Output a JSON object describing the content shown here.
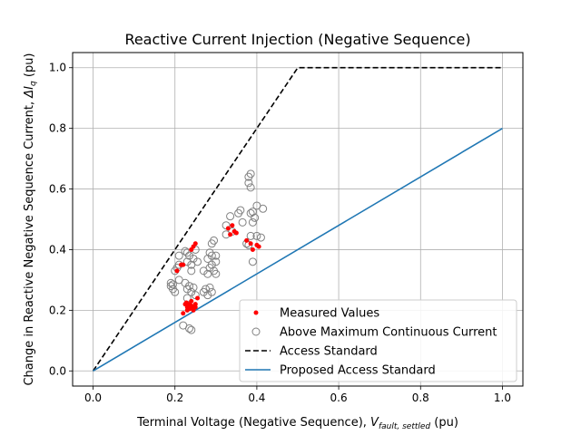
{
  "chart_data": {
    "type": "scatter",
    "title": "Reactive Current Injection (Negative Sequence)",
    "xlabel": "Terminal Voltage (Negative Sequence), ",
    "xlabel_var": "V",
    "xlabel_sub": "fault, settled",
    "xlabel_unit": " (pu)",
    "ylabel": "Change in Reactive Negative Sequence Current, ",
    "ylabel_var": "ΔI",
    "ylabel_sub": "q",
    "ylabel_unit": " (pu)",
    "xlim": [
      -0.05,
      1.05
    ],
    "ylim": [
      -0.05,
      1.05
    ],
    "xticks": [
      0.0,
      0.2,
      0.4,
      0.6,
      0.8,
      1.0
    ],
    "xtick_labels": [
      "0.0",
      "0.2",
      "0.4",
      "0.6",
      "0.8",
      "1.0"
    ],
    "yticks": [
      0.0,
      0.2,
      0.4,
      0.6,
      0.8,
      1.0
    ],
    "ytick_labels": [
      "0.0",
      "0.2",
      "0.4",
      "0.6",
      "0.8",
      "1.0"
    ],
    "grid": true,
    "legend_position": "lower-right",
    "series": [
      {
        "name": "Measured Values",
        "kind": "scatter",
        "marker": "filled-dot",
        "color": "#ff0000",
        "points": [
          [
            0.215,
            0.35
          ],
          [
            0.22,
            0.35
          ],
          [
            0.205,
            0.33
          ],
          [
            0.24,
            0.4
          ],
          [
            0.245,
            0.41
          ],
          [
            0.25,
            0.42
          ],
          [
            0.22,
            0.19
          ],
          [
            0.225,
            0.22
          ],
          [
            0.23,
            0.21
          ],
          [
            0.235,
            0.22
          ],
          [
            0.24,
            0.23
          ],
          [
            0.245,
            0.21
          ],
          [
            0.25,
            0.22
          ],
          [
            0.255,
            0.24
          ],
          [
            0.23,
            0.2
          ],
          [
            0.24,
            0.215
          ],
          [
            0.245,
            0.2
          ],
          [
            0.25,
            0.21
          ],
          [
            0.228,
            0.225
          ],
          [
            0.236,
            0.205
          ],
          [
            0.33,
            0.47
          ],
          [
            0.34,
            0.48
          ],
          [
            0.345,
            0.46
          ],
          [
            0.335,
            0.45
          ],
          [
            0.35,
            0.455
          ],
          [
            0.375,
            0.43
          ],
          [
            0.385,
            0.42
          ],
          [
            0.39,
            0.4
          ],
          [
            0.4,
            0.415
          ],
          [
            0.405,
            0.41
          ]
        ]
      },
      {
        "name": "Above Maximum Continuous Current",
        "kind": "scatter",
        "marker": "hollow-circle",
        "color": "#808080",
        "points": [
          [
            0.19,
            0.29
          ],
          [
            0.195,
            0.27
          ],
          [
            0.19,
            0.28
          ],
          [
            0.2,
            0.33
          ],
          [
            0.205,
            0.34
          ],
          [
            0.21,
            0.35
          ],
          [
            0.2,
            0.26
          ],
          [
            0.195,
            0.285
          ],
          [
            0.21,
            0.3
          ],
          [
            0.225,
            0.29
          ],
          [
            0.23,
            0.27
          ],
          [
            0.235,
            0.28
          ],
          [
            0.24,
            0.26
          ],
          [
            0.245,
            0.275
          ],
          [
            0.25,
            0.25
          ],
          [
            0.23,
            0.36
          ],
          [
            0.235,
            0.38
          ],
          [
            0.24,
            0.35
          ],
          [
            0.245,
            0.37
          ],
          [
            0.25,
            0.4
          ],
          [
            0.23,
            0.39
          ],
          [
            0.24,
            0.33
          ],
          [
            0.255,
            0.36
          ],
          [
            0.22,
            0.15
          ],
          [
            0.235,
            0.14
          ],
          [
            0.24,
            0.135
          ],
          [
            0.23,
            0.24
          ],
          [
            0.27,
            0.26
          ],
          [
            0.275,
            0.27
          ],
          [
            0.28,
            0.25
          ],
          [
            0.285,
            0.275
          ],
          [
            0.29,
            0.26
          ],
          [
            0.27,
            0.33
          ],
          [
            0.28,
            0.32
          ],
          [
            0.285,
            0.34
          ],
          [
            0.29,
            0.35
          ],
          [
            0.295,
            0.33
          ],
          [
            0.28,
            0.37
          ],
          [
            0.29,
            0.38
          ],
          [
            0.285,
            0.39
          ],
          [
            0.29,
            0.42
          ],
          [
            0.295,
            0.43
          ],
          [
            0.3,
            0.38
          ],
          [
            0.3,
            0.32
          ],
          [
            0.325,
            0.45
          ],
          [
            0.325,
            0.48
          ],
          [
            0.335,
            0.51
          ],
          [
            0.34,
            0.46
          ],
          [
            0.355,
            0.52
          ],
          [
            0.36,
            0.53
          ],
          [
            0.365,
            0.49
          ],
          [
            0.375,
            0.42
          ],
          [
            0.38,
            0.415
          ],
          [
            0.38,
            0.64
          ],
          [
            0.385,
            0.65
          ],
          [
            0.38,
            0.62
          ],
          [
            0.385,
            0.605
          ],
          [
            0.385,
            0.52
          ],
          [
            0.39,
            0.525
          ],
          [
            0.39,
            0.49
          ],
          [
            0.395,
            0.505
          ],
          [
            0.385,
            0.445
          ],
          [
            0.39,
            0.36
          ],
          [
            0.4,
            0.545
          ],
          [
            0.4,
            0.445
          ],
          [
            0.41,
            0.44
          ],
          [
            0.415,
            0.535
          ],
          [
            0.21,
            0.38
          ],
          [
            0.225,
            0.395
          ],
          [
            0.3,
            0.36
          ]
        ]
      },
      {
        "name": "Access Standard",
        "kind": "line",
        "style": "dashed",
        "color": "#000000",
        "points": [
          [
            0.0,
            0.0
          ],
          [
            0.5,
            1.0
          ],
          [
            1.0,
            1.0
          ]
        ]
      },
      {
        "name": "Proposed Access Standard",
        "kind": "line",
        "style": "solid",
        "color": "#1f77b4",
        "points": [
          [
            0.0,
            0.0
          ],
          [
            1.0,
            0.8
          ]
        ]
      }
    ]
  }
}
